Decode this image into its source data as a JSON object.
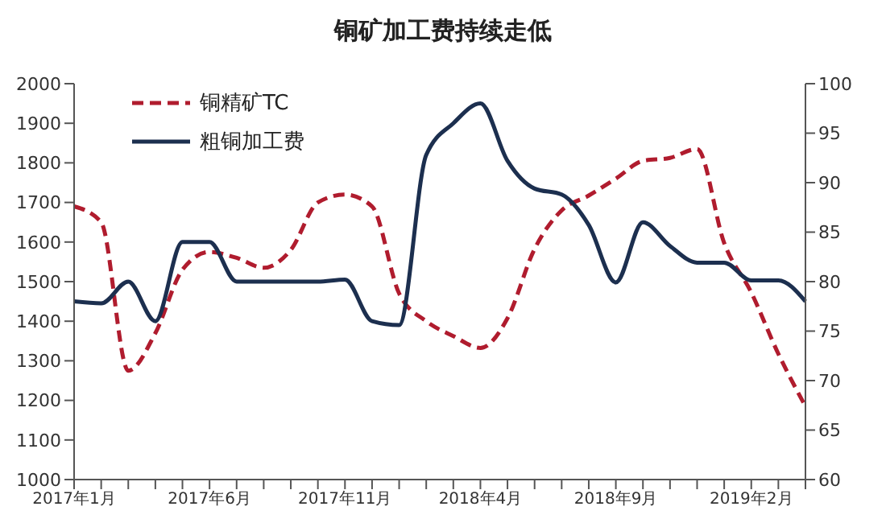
{
  "chart_data": {
    "type": "line",
    "title": "铜矿加工费持续走低",
    "categories": [
      "2017年1月",
      null,
      null,
      null,
      null,
      "2017年6月",
      null,
      null,
      null,
      null,
      "2017年11月",
      null,
      null,
      null,
      null,
      "2018年4月",
      null,
      null,
      null,
      null,
      "2018年9月",
      null,
      null,
      null,
      null,
      "2019年2月",
      null,
      null
    ],
    "series": [
      {
        "name": "铜精矿TC",
        "color": "#b01c2e",
        "axis": "y2",
        "line_style": "dashed",
        "values": [
          87.6,
          86,
          71,
          74.8,
          81.2,
          83,
          82.4,
          81.4,
          83.2,
          88,
          88.8,
          87.6,
          78.8,
          76,
          74.5,
          73.3,
          76.3,
          83.3,
          87.2,
          88.7,
          90.4,
          92.2,
          92.5,
          93.4,
          83.9,
          78.9,
          72.7,
          67.4
        ]
      },
      {
        "name": "粗铜加工费",
        "color": "#1c2f4f",
        "line_style": "solid",
        "values": [
          1450,
          1445,
          1500,
          1400,
          1600,
          1600,
          1500,
          1500,
          1500,
          1500,
          1505,
          1400,
          1390,
          1820,
          1900,
          1950,
          1805,
          1735,
          1720,
          1643,
          1498,
          1650,
          1590,
          1548,
          1548,
          1503,
          1503,
          1450
        ]
      }
    ],
    "ylim": [
      1000,
      2000
    ],
    "yticks": [
      1000,
      1100,
      1200,
      1300,
      1400,
      1500,
      1600,
      1700,
      1800,
      1900,
      2000
    ],
    "y2lim": [
      60,
      100
    ],
    "y2ticks": [
      60,
      65,
      70,
      75,
      80,
      85,
      90,
      95,
      100
    ],
    "legend": "top left",
    "grid": false
  }
}
